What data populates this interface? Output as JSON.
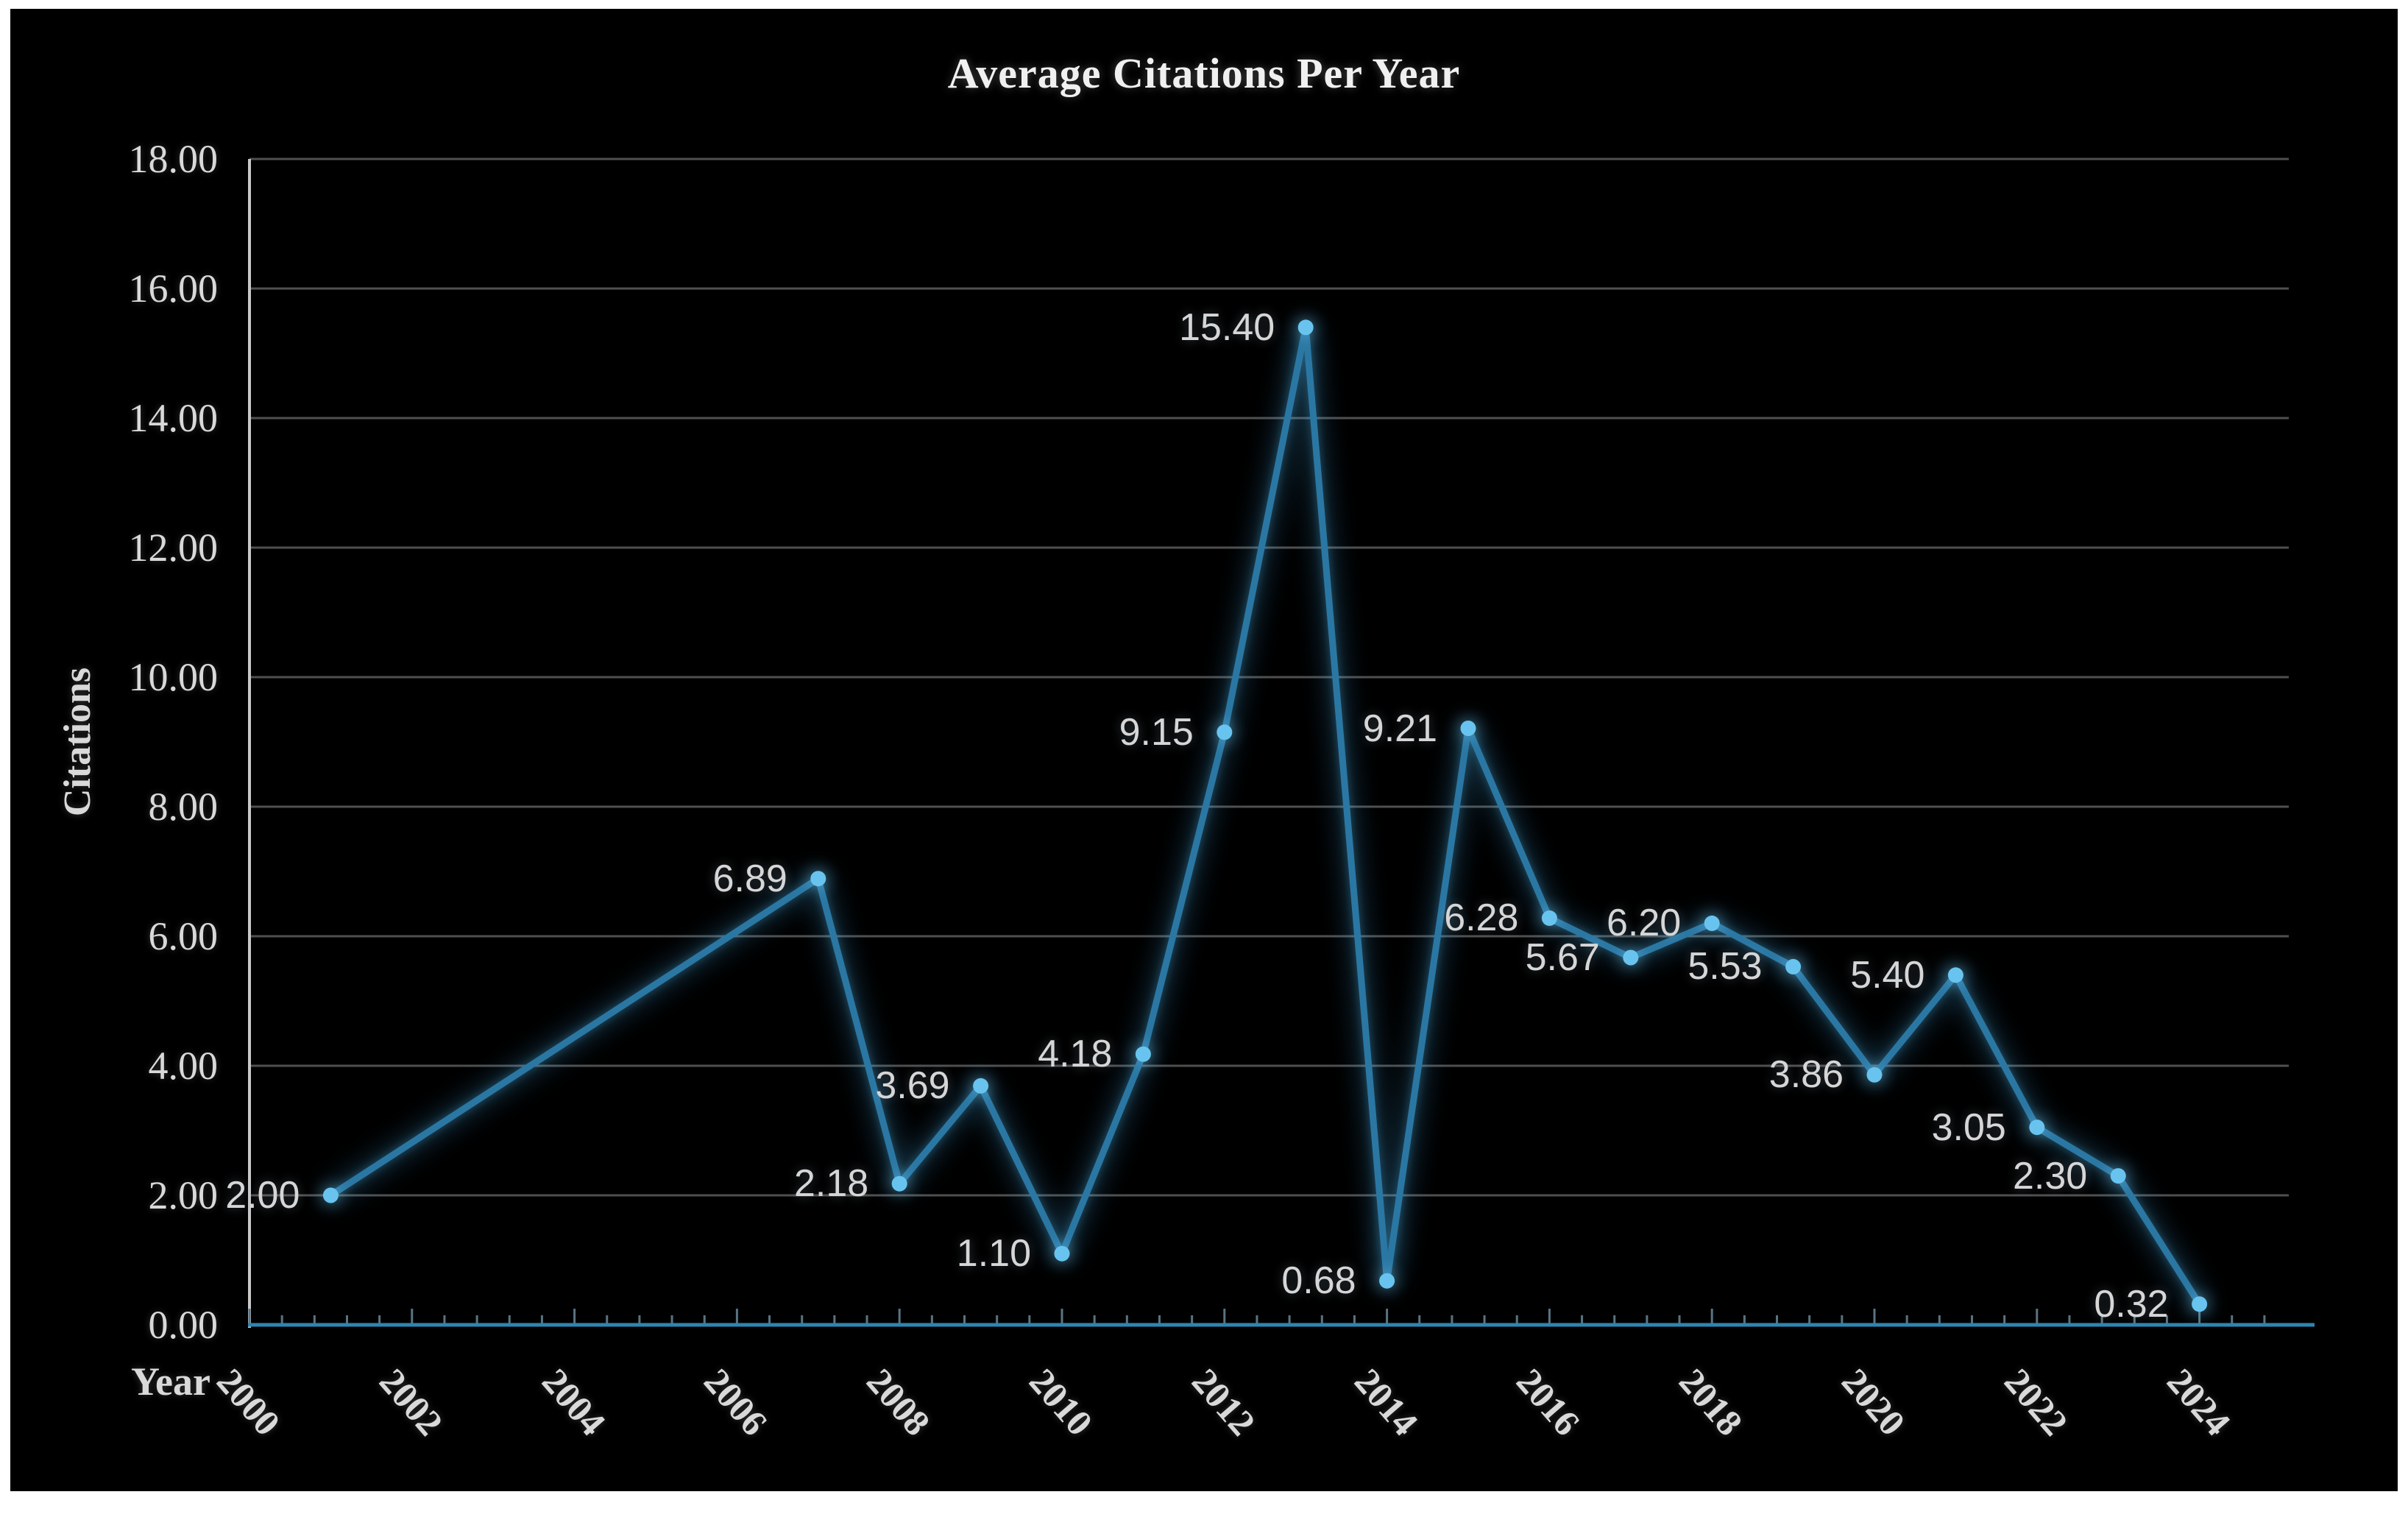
{
  "title": "Average Citations Per Year",
  "y_axis": {
    "title": "Citations",
    "tick_labels": [
      "18.00",
      "16.00",
      "14.00",
      "12.00",
      "10.00",
      "8.00",
      "6.00",
      "4.00",
      "2.00",
      "0.00"
    ]
  },
  "x_axis": {
    "title": "Year",
    "tick_labels": [
      "2000",
      "2002",
      "2004",
      "2006",
      "2008",
      "2010",
      "2012",
      "2014",
      "2016",
      "2018",
      "2020",
      "2022",
      "2024"
    ]
  },
  "chart_data": {
    "type": "line",
    "title": "Average Citations Per Year",
    "xlabel": "Year",
    "ylabel": "Citations",
    "ylim": [
      0,
      18
    ],
    "y_tick_step": 2,
    "x_axis_range": [
      2000,
      2024
    ],
    "x_tick_step": 2,
    "grid": true,
    "legend": false,
    "marker": "circle",
    "series": [
      {
        "name": "Average Citations Per Year",
        "points": [
          {
            "x": 2001,
            "y": 2.0,
            "label": "2.00"
          },
          {
            "x": 2007,
            "y": 6.89,
            "label": "6.89"
          },
          {
            "x": 2008,
            "y": 2.18,
            "label": "2.18"
          },
          {
            "x": 2009,
            "y": 3.69,
            "label": "3.69"
          },
          {
            "x": 2010,
            "y": 1.1,
            "label": "1.10"
          },
          {
            "x": 2011,
            "y": 4.18,
            "label": "4.18"
          },
          {
            "x": 2012,
            "y": 9.15,
            "label": "9.15"
          },
          {
            "x": 2013,
            "y": 15.4,
            "label": "15.40"
          },
          {
            "x": 2014,
            "y": 0.68,
            "label": "0.68"
          },
          {
            "x": 2015,
            "y": 9.21,
            "label": "9.21"
          },
          {
            "x": 2016,
            "y": 6.28,
            "label": "6.28"
          },
          {
            "x": 2017,
            "y": 5.67,
            "label": "5.67"
          },
          {
            "x": 2018,
            "y": 6.2,
            "label": "6.20"
          },
          {
            "x": 2019,
            "y": 5.53,
            "label": "5.53"
          },
          {
            "x": 2020,
            "y": 3.86,
            "label": "3.86"
          },
          {
            "x": 2021,
            "y": 5.4,
            "label": "5.40"
          },
          {
            "x": 2022,
            "y": 3.05,
            "label": "3.05"
          },
          {
            "x": 2023,
            "y": 2.3,
            "label": "2.30"
          },
          {
            "x": 2024,
            "y": 0.32,
            "label": "0.32"
          }
        ]
      }
    ],
    "colors": {
      "background": "#000000",
      "page_border": "#ffffff",
      "line": "#2B77A3",
      "marker": "#68C4EE",
      "grid": "#4F4F4F",
      "y_axis_line": "#C8C8C8",
      "x_axis_line": "#2E86B0",
      "tick": "#587484",
      "data_label_text": "#D6D6D6",
      "axis_text": "#D9D9D9",
      "title_text": "#F0F0F0"
    }
  }
}
